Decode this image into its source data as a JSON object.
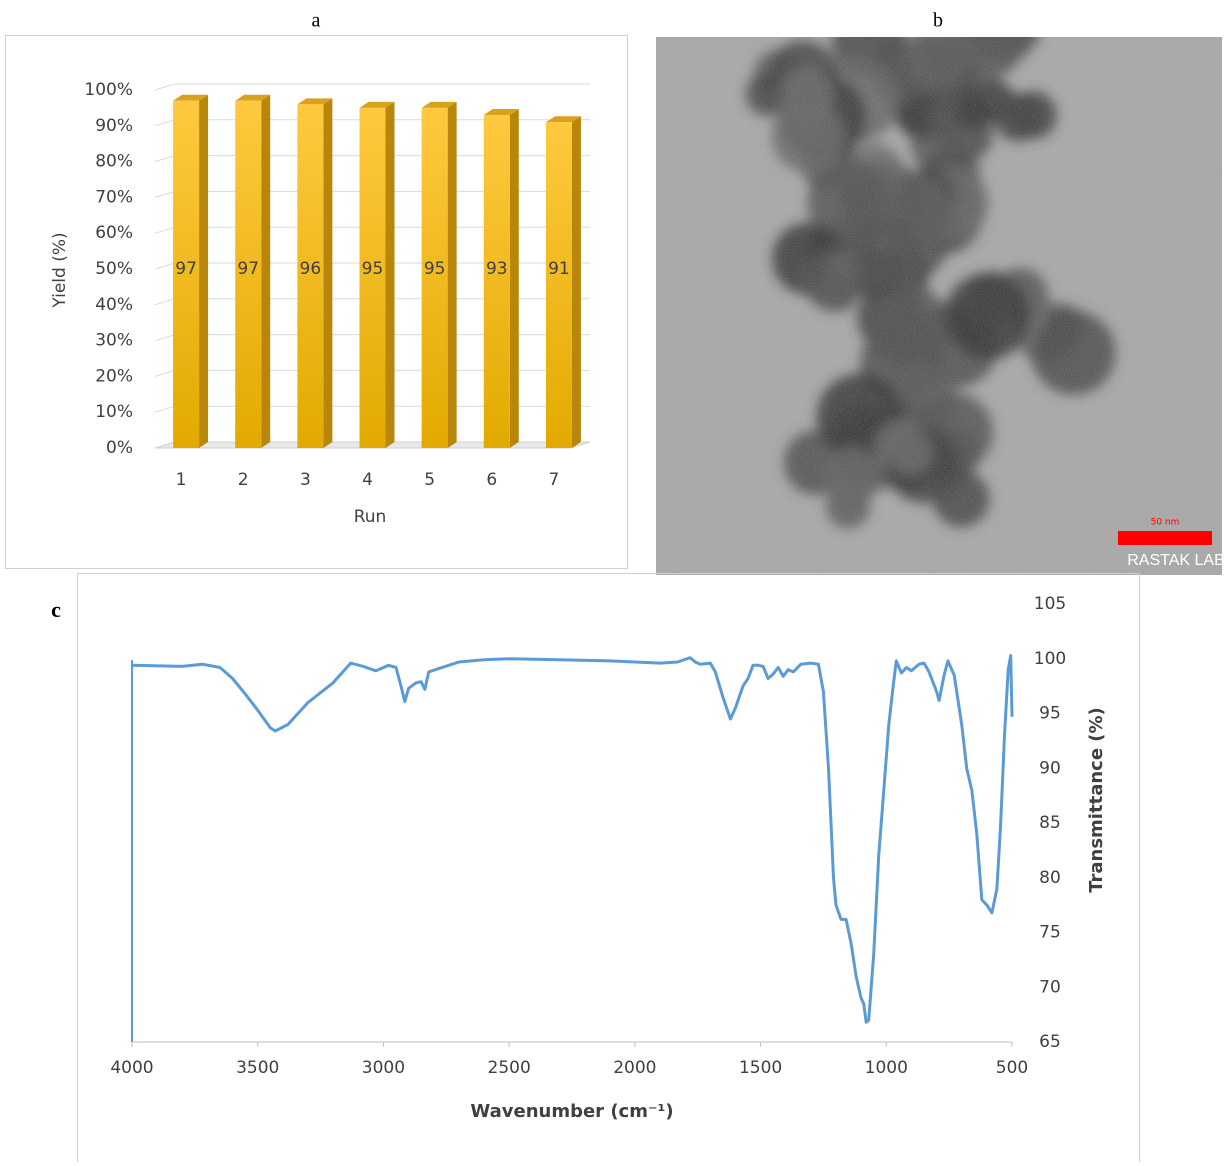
{
  "chart_data": [
    {
      "type": "bar",
      "panel_label": "a",
      "x_label": "Run",
      "y_label": "Yield (%)",
      "categories": [
        "1",
        "2",
        "3",
        "4",
        "5",
        "6",
        "7"
      ],
      "values": [
        97,
        97,
        96,
        95,
        95,
        93,
        91
      ],
      "color": "#f5bd1f",
      "ylim": [
        0,
        100
      ],
      "yticks": [
        {
          "value": 0,
          "label": "0%"
        },
        {
          "value": 10,
          "label": "10%"
        },
        {
          "value": 20,
          "label": "20%"
        },
        {
          "value": 30,
          "label": "30%"
        },
        {
          "value": 40,
          "label": "40%"
        },
        {
          "value": 50,
          "label": "50%"
        },
        {
          "value": 60,
          "label": "60%"
        },
        {
          "value": 70,
          "label": "70%"
        },
        {
          "value": 80,
          "label": "80%"
        },
        {
          "value": 90,
          "label": "90%"
        },
        {
          "value": 100,
          "label": "100%"
        }
      ],
      "grid": true
    },
    {
      "type": "line",
      "panel_label": "c",
      "x_label": "Wavenumber (cm⁻¹)",
      "y_label": "Transmittance (%)",
      "y_axis_side": "right",
      "color": "#5b9bd5",
      "x": [
        4000,
        3800,
        3720,
        3650,
        3600,
        3550,
        3500,
        3450,
        3430,
        3380,
        3300,
        3200,
        3130,
        3080,
        3030,
        2980,
        2950,
        2930,
        2915,
        2900,
        2870,
        2850,
        2835,
        2820,
        2780,
        2700,
        2600,
        2500,
        2300,
        2100,
        2000,
        1900,
        1830,
        1780,
        1760,
        1740,
        1700,
        1680,
        1650,
        1620,
        1600,
        1570,
        1550,
        1530,
        1510,
        1490,
        1470,
        1450,
        1430,
        1410,
        1390,
        1370,
        1340,
        1300,
        1270,
        1250,
        1230,
        1210,
        1200,
        1180,
        1160,
        1140,
        1120,
        1100,
        1090,
        1080,
        1070,
        1050,
        1030,
        1010,
        990,
        970,
        960,
        940,
        920,
        900,
        870,
        850,
        830,
        800,
        790,
        770,
        755,
        730,
        700,
        680,
        660,
        640,
        620,
        600,
        580,
        560,
        545,
        530,
        515,
        505,
        500
      ],
      "values": [
        99.4,
        99.3,
        99.5,
        99.2,
        98.2,
        96.8,
        95.3,
        93.7,
        93.4,
        94,
        96,
        97.8,
        99.6,
        99.3,
        98.9,
        99.4,
        99.2,
        97.5,
        96.1,
        97.3,
        97.8,
        97.9,
        97.2,
        98.8,
        99.1,
        99.7,
        99.9,
        100,
        99.9,
        99.8,
        99.7,
        99.6,
        99.7,
        100.1,
        99.7,
        99.5,
        99.6,
        98.8,
        96.5,
        94.5,
        95.5,
        97.5,
        98.2,
        99.4,
        99.4,
        99.3,
        98.2,
        98.6,
        99.2,
        98.4,
        99,
        98.8,
        99.5,
        99.6,
        99.5,
        97,
        90,
        80,
        77.5,
        76.2,
        76.2,
        74,
        71,
        69,
        68.5,
        66.8,
        67,
        73,
        82,
        88,
        94,
        98,
        99.8,
        98.7,
        99.2,
        98.9,
        99.5,
        99.6,
        98.8,
        97,
        96.2,
        98.5,
        99.8,
        98.5,
        94,
        90,
        88,
        84,
        78,
        77.5,
        76.8,
        79,
        85,
        93,
        99,
        100.3,
        94.7
      ],
      "xlim": [
        4000,
        500
      ],
      "xticks": [
        4000,
        3500,
        3000,
        2500,
        2000,
        1500,
        1000,
        500
      ],
      "ylim": [
        65,
        105
      ],
      "yticks": [
        65,
        70,
        75,
        80,
        85,
        90,
        95,
        100,
        105
      ]
    }
  ],
  "image": {
    "panel_label": "b",
    "scale_bar": "50 nm",
    "watermark": "RASTAK LAB"
  }
}
